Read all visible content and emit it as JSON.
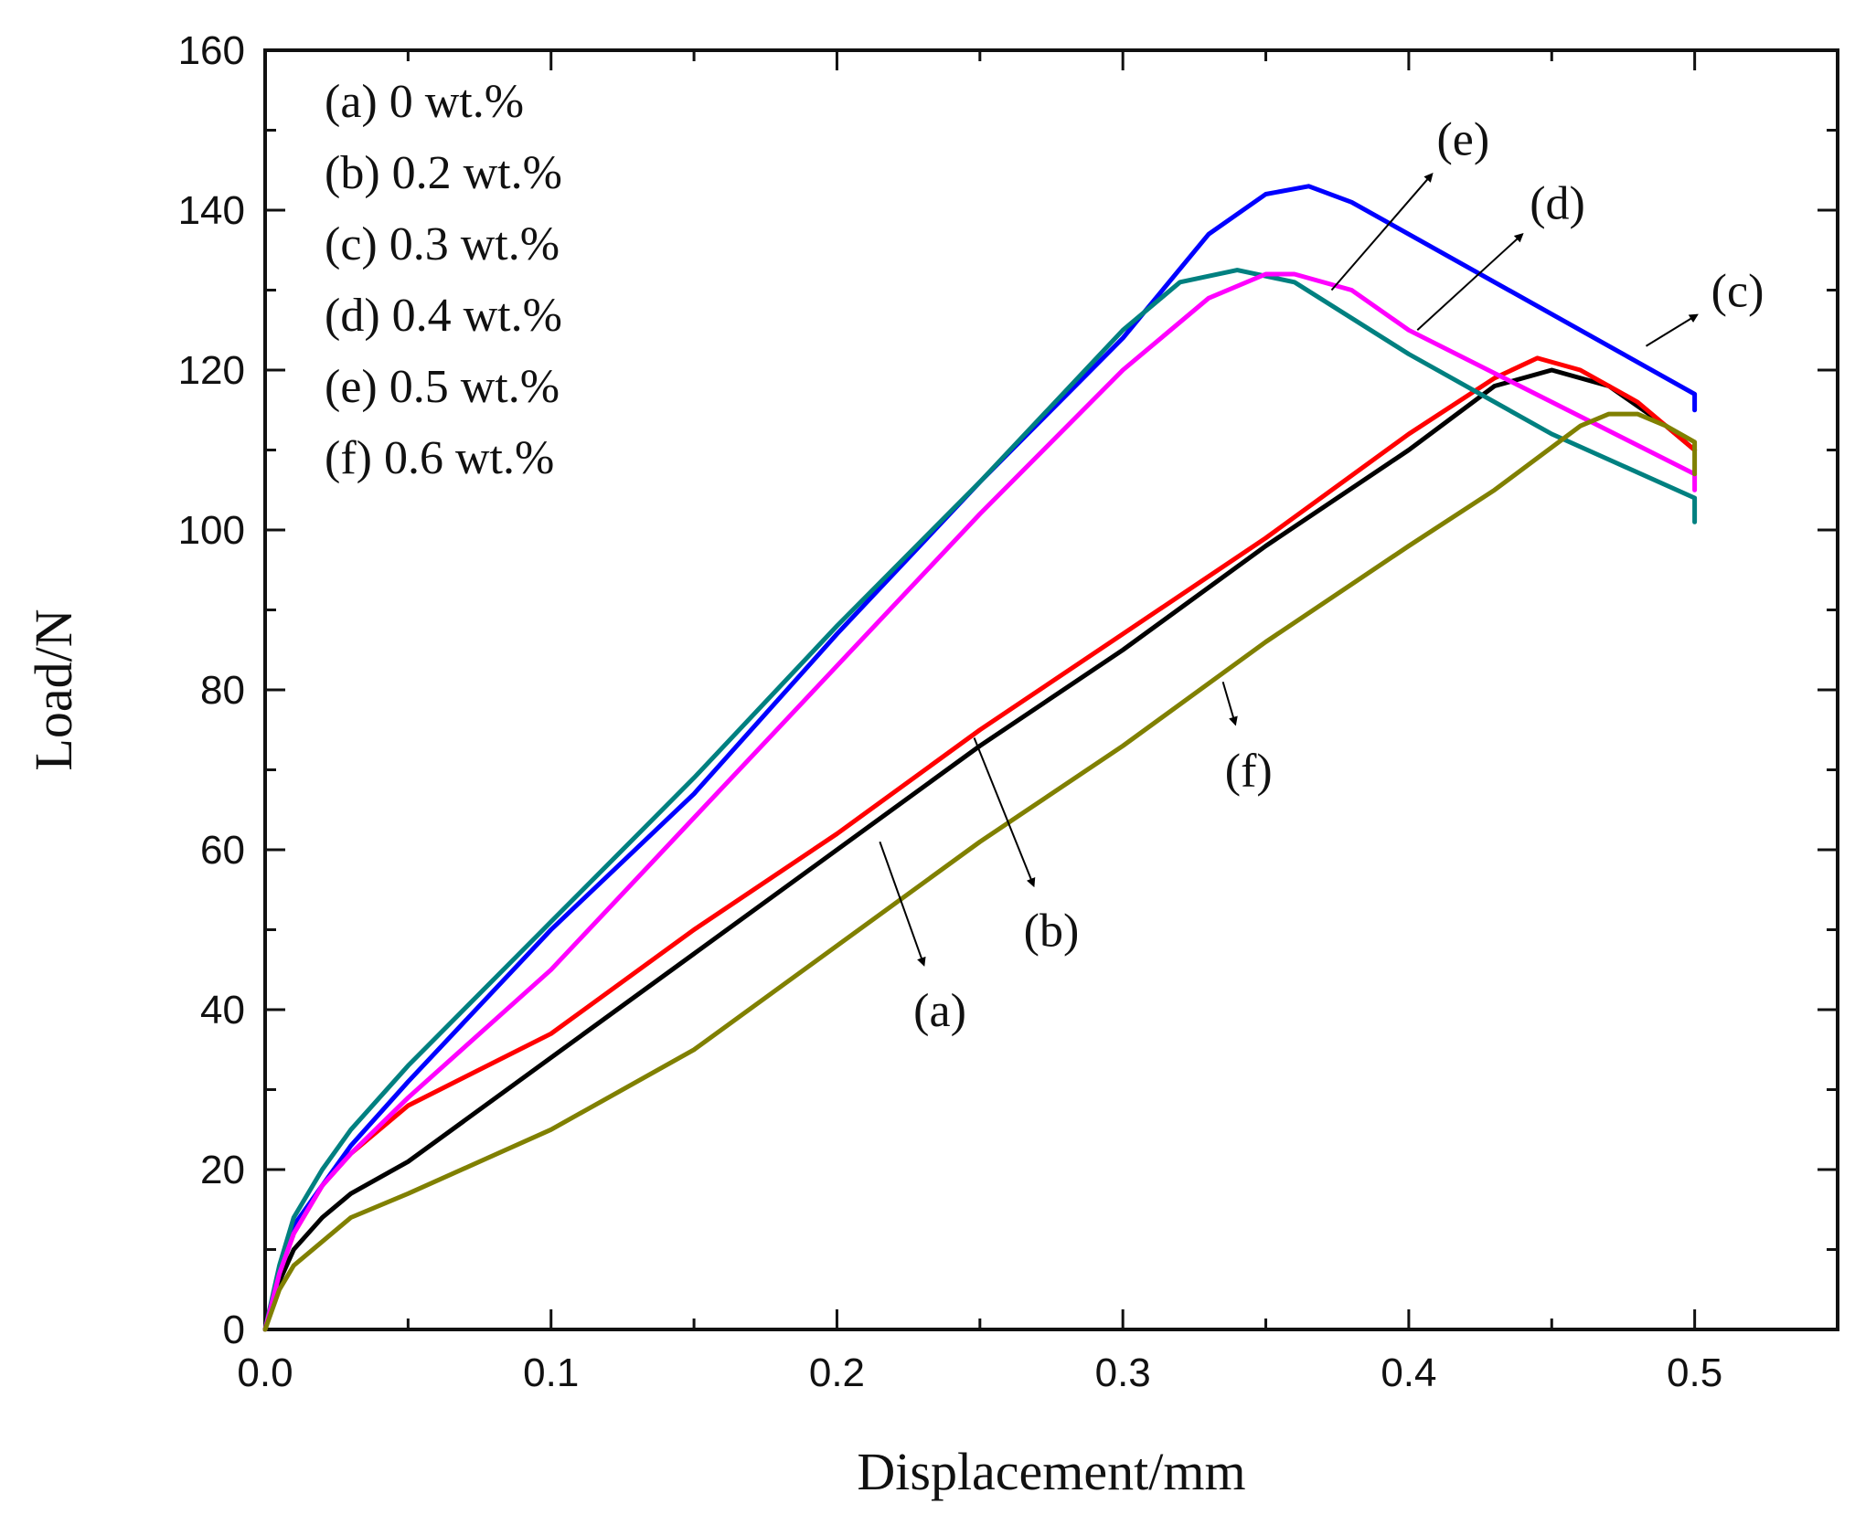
{
  "chart_data": {
    "type": "line",
    "xlabel": "Displacement/mm",
    "ylabel": "Load/N",
    "xlim": [
      0.0,
      0.55
    ],
    "ylim": [
      0,
      160
    ],
    "x_ticks": [
      "0.0",
      "0.1",
      "0.2",
      "0.3",
      "0.4",
      "0.5"
    ],
    "x_tick_values": [
      0.0,
      0.1,
      0.2,
      0.3,
      0.4,
      0.5
    ],
    "y_ticks": [
      "0",
      "20",
      "40",
      "60",
      "80",
      "100",
      "120",
      "140",
      "160"
    ],
    "y_tick_values": [
      0,
      20,
      40,
      60,
      80,
      100,
      120,
      140,
      160
    ],
    "grid": false,
    "legend": {
      "placement": "top-left",
      "entries": [
        "(a) 0 wt.%",
        "(b) 0.2 wt.%",
        "(c) 0.3 wt.%",
        "(d) 0.4 wt.%",
        "(e) 0.5 wt.%",
        "(f)  0.6 wt.%"
      ]
    },
    "series": [
      {
        "name": "(a) 0 wt.%",
        "color": "#000000",
        "x": [
          0,
          0.005,
          0.01,
          0.02,
          0.03,
          0.05,
          0.1,
          0.15,
          0.2,
          0.25,
          0.3,
          0.35,
          0.4,
          0.43,
          0.45,
          0.47,
          0.49,
          0.5
        ],
        "y": [
          0,
          6,
          10,
          14,
          17,
          21,
          34,
          47,
          60,
          73,
          85,
          98,
          110,
          118,
          120,
          118,
          113,
          110
        ]
      },
      {
        "name": "(b) 0.2 wt.%",
        "color": "#ff0000",
        "x": [
          0,
          0.005,
          0.01,
          0.02,
          0.03,
          0.05,
          0.1,
          0.15,
          0.2,
          0.25,
          0.3,
          0.35,
          0.4,
          0.43,
          0.445,
          0.46,
          0.48,
          0.5
        ],
        "y": [
          0,
          7,
          12,
          18,
          22,
          28,
          37,
          50,
          62,
          75,
          87,
          99,
          112,
          119,
          121.5,
          120,
          116,
          110
        ]
      },
      {
        "name": "(c) 0.3 wt.%",
        "color": "#0000ff",
        "x": [
          0,
          0.005,
          0.01,
          0.02,
          0.03,
          0.05,
          0.1,
          0.15,
          0.2,
          0.25,
          0.3,
          0.33,
          0.35,
          0.365,
          0.38,
          0.4,
          0.45,
          0.5,
          0.5
        ],
        "y": [
          0,
          7,
          13,
          18,
          23,
          31,
          50,
          67,
          87,
          106,
          124,
          137,
          142,
          143,
          141,
          137,
          127,
          117,
          115
        ]
      },
      {
        "name": "(d) 0.4 wt.%",
        "color": "#008080",
        "x": [
          0,
          0.005,
          0.01,
          0.02,
          0.03,
          0.05,
          0.1,
          0.15,
          0.2,
          0.25,
          0.3,
          0.32,
          0.34,
          0.36,
          0.4,
          0.45,
          0.5,
          0.5
        ],
        "y": [
          0,
          8,
          14,
          20,
          25,
          33,
          51,
          69,
          88,
          106,
          125,
          131,
          132.5,
          131,
          122,
          112,
          104,
          101
        ]
      },
      {
        "name": "(e) 0.5 wt.%",
        "color": "#ff00ff",
        "x": [
          0,
          0.005,
          0.01,
          0.02,
          0.03,
          0.05,
          0.1,
          0.15,
          0.2,
          0.25,
          0.3,
          0.33,
          0.35,
          0.36,
          0.38,
          0.4,
          0.45,
          0.5,
          0.5
        ],
        "y": [
          0,
          7,
          12,
          18,
          22,
          29,
          45,
          64,
          83,
          102,
          120,
          129,
          132,
          132,
          130,
          125,
          116,
          107,
          105
        ]
      },
      {
        "name": "(f)  0.6 wt.%",
        "color": "#808000",
        "x": [
          0,
          0.005,
          0.01,
          0.02,
          0.03,
          0.05,
          0.1,
          0.15,
          0.2,
          0.25,
          0.3,
          0.35,
          0.4,
          0.43,
          0.46,
          0.47,
          0.48,
          0.49,
          0.5,
          0.5
        ],
        "y": [
          0,
          5,
          8,
          11,
          14,
          17,
          25,
          35,
          48,
          61,
          73,
          86,
          98,
          105,
          113,
          114.5,
          114.5,
          113,
          111,
          107
        ]
      }
    ],
    "annotations": [
      {
        "label": "(a)",
        "curve_x": 0.215,
        "curve_y": 61,
        "text_x": 0.236,
        "text_y": 40
      },
      {
        "label": "(b)",
        "curve_x": 0.248,
        "curve_y": 74,
        "text_x": 0.275,
        "text_y": 50
      },
      {
        "label": "(c)",
        "curve_x": 0.483,
        "curve_y": 123,
        "text_x": 0.515,
        "text_y": 130
      },
      {
        "label": "(d)",
        "curve_x": 0.403,
        "curve_y": 125,
        "text_x": 0.452,
        "text_y": 141
      },
      {
        "label": "(e)",
        "curve_x": 0.373,
        "curve_y": 130,
        "text_x": 0.419,
        "text_y": 149
      },
      {
        "label": "(f)",
        "curve_x": 0.335,
        "curve_y": 81,
        "text_x": 0.344,
        "text_y": 70
      }
    ]
  }
}
